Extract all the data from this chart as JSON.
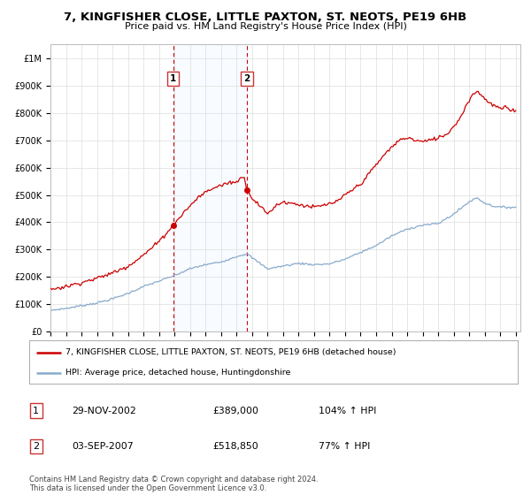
{
  "title": "7, KINGFISHER CLOSE, LITTLE PAXTON, ST. NEOTS, PE19 6HB",
  "subtitle": "Price paid vs. HM Land Registry's House Price Index (HPI)",
  "background_color": "#ffffff",
  "plot_bg_color": "#ffffff",
  "grid_color": "#dddddd",
  "red_line_color": "#cc0000",
  "blue_line_color": "#88aacc",
  "sale1_date": 2002.91,
  "sale1_price": 389000,
  "sale1_label": "1",
  "sale2_date": 2007.67,
  "sale2_price": 518850,
  "sale2_label": "2",
  "shade_color": "#ddeeff",
  "dashed_line_color": "#cc0000",
  "ylim_min": 0,
  "ylim_max": 1050000,
  "xlim_min": 1995.0,
  "xlim_max": 2025.3,
  "legend_property_label": "7, KINGFISHER CLOSE, LITTLE PAXTON, ST. NEOTS, PE19 6HB (detached house)",
  "legend_hpi_label": "HPI: Average price, detached house, Huntingdonshire",
  "footer_line1": "Contains HM Land Registry data © Crown copyright and database right 2024.",
  "footer_line2": "This data is licensed under the Open Government Licence v3.0.",
  "table_rows": [
    {
      "num": "1",
      "date": "29-NOV-2002",
      "price": "£389,000",
      "hpi": "104% ↑ HPI"
    },
    {
      "num": "2",
      "date": "03-SEP-2007",
      "price": "£518,850",
      "hpi": "77% ↑ HPI"
    }
  ],
  "yticks": [
    0,
    100000,
    200000,
    300000,
    400000,
    500000,
    600000,
    700000,
    800000,
    900000,
    1000000
  ],
  "ytick_labels": [
    "£0",
    "£100K",
    "£200K",
    "£300K",
    "£400K",
    "£500K",
    "£600K",
    "£700K",
    "£800K",
    "£900K",
    "£1M"
  ],
  "hpi_anchors_t": [
    1995.0,
    1996.0,
    1997.0,
    1998.0,
    1999.0,
    2000.0,
    2001.0,
    2002.0,
    2003.0,
    2004.0,
    2005.0,
    2006.0,
    2007.0,
    2007.67,
    2008.0,
    2009.0,
    2009.5,
    2010.0,
    2011.0,
    2012.0,
    2013.0,
    2014.0,
    2015.0,
    2016.0,
    2017.0,
    2018.0,
    2019.0,
    2020.0,
    2021.0,
    2022.0,
    2022.5,
    2023.0,
    2023.5,
    2024.0,
    2024.5,
    2025.0
  ],
  "hpi_anchors_v": [
    78000,
    85000,
    95000,
    105000,
    120000,
    140000,
    165000,
    185000,
    205000,
    230000,
    245000,
    255000,
    275000,
    285000,
    270000,
    230000,
    235000,
    240000,
    250000,
    245000,
    248000,
    265000,
    290000,
    315000,
    350000,
    375000,
    390000,
    395000,
    430000,
    475000,
    490000,
    470000,
    460000,
    455000,
    455000,
    455000
  ],
  "red_anchors_t": [
    1995.0,
    1996.0,
    1997.0,
    1998.0,
    1999.0,
    2000.0,
    2001.0,
    2002.0,
    2002.91,
    2003.5,
    2004.0,
    2004.5,
    2005.0,
    2005.5,
    2006.0,
    2006.5,
    2007.0,
    2007.5,
    2007.67,
    2008.0,
    2008.5,
    2009.0,
    2009.5,
    2010.0,
    2010.5,
    2011.0,
    2011.5,
    2012.0,
    2012.5,
    2013.0,
    2013.5,
    2014.0,
    2014.5,
    2015.0,
    2015.5,
    2016.0,
    2016.5,
    2017.0,
    2017.5,
    2018.0,
    2018.5,
    2019.0,
    2019.5,
    2020.0,
    2020.5,
    2021.0,
    2021.5,
    2022.0,
    2022.3,
    2022.5,
    2022.7,
    2023.0,
    2023.2,
    2023.5,
    2024.0,
    2024.3,
    2024.7,
    2025.0
  ],
  "red_anchors_v": [
    155000,
    165000,
    180000,
    195000,
    215000,
    240000,
    280000,
    330000,
    389000,
    430000,
    460000,
    490000,
    510000,
    525000,
    535000,
    545000,
    548000,
    570000,
    518850,
    490000,
    460000,
    430000,
    460000,
    475000,
    470000,
    465000,
    460000,
    455000,
    460000,
    468000,
    475000,
    500000,
    520000,
    540000,
    575000,
    610000,
    645000,
    675000,
    700000,
    710000,
    700000,
    695000,
    700000,
    710000,
    720000,
    750000,
    790000,
    850000,
    870000,
    880000,
    870000,
    855000,
    840000,
    830000,
    815000,
    820000,
    810000,
    810000
  ]
}
